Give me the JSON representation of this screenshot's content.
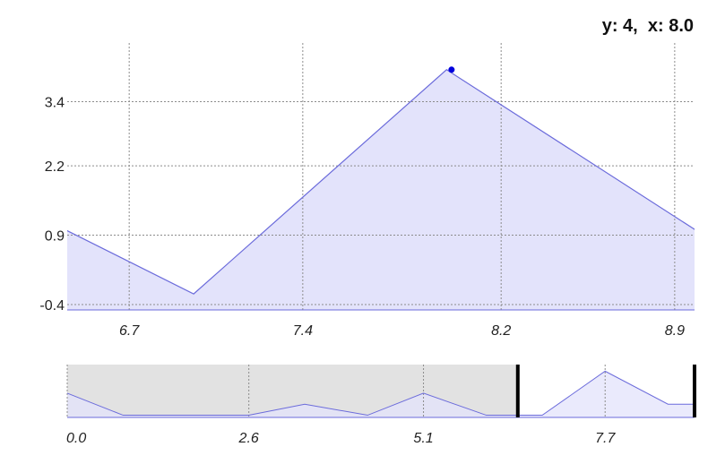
{
  "readout": {
    "label": "y: 4,  x: 8.0"
  },
  "chart_data": {
    "type": "area",
    "main": {
      "x": [
        6.4,
        6.96,
        7.98,
        9.0
      ],
      "y": [
        1.1,
        -0.2,
        4.0,
        0.95
      ],
      "xlim": [
        6.45,
        8.98
      ],
      "ylim": [
        -0.5,
        4.5
      ],
      "yticks": [
        "3.4",
        "2.2",
        "0.9",
        "-0.4"
      ],
      "ytick_values": [
        3.4,
        2.2,
        0.9,
        -0.4
      ],
      "xticks": [
        "6.7",
        "7.4",
        "8.2",
        "8.9"
      ],
      "xtick_values": [
        6.7,
        7.4,
        8.2,
        8.9
      ],
      "highlight": {
        "x": 8.0,
        "y": 4
      },
      "grid": true
    },
    "overview": {
      "x": [
        0.0,
        0.8,
        1.7,
        2.6,
        3.4,
        4.3,
        5.1,
        6.0,
        6.8,
        7.7,
        8.6,
        8.98
      ],
      "y": [
        0.55,
        0.05,
        0.05,
        0.05,
        0.3,
        0.05,
        0.55,
        0.05,
        0.05,
        1.05,
        0.3,
        0.3
      ],
      "xlim": [
        0.0,
        8.98
      ],
      "ylim": [
        0.0,
        1.2
      ],
      "xticks": [
        "0.0",
        "2.6",
        "5.1",
        "7.7"
      ],
      "xtick_values": [
        0.0,
        2.6,
        5.1,
        7.7
      ],
      "selection": [
        0.0,
        6.45
      ],
      "handles": [
        6.45,
        8.98
      ],
      "grid": true
    }
  },
  "colors": {
    "line": "#6b6bdb",
    "fill": "#e3e3fb",
    "point": "#0000dd",
    "grid": "#8c8c8c",
    "mask": "#e2e2e2",
    "handle": "#000000"
  }
}
